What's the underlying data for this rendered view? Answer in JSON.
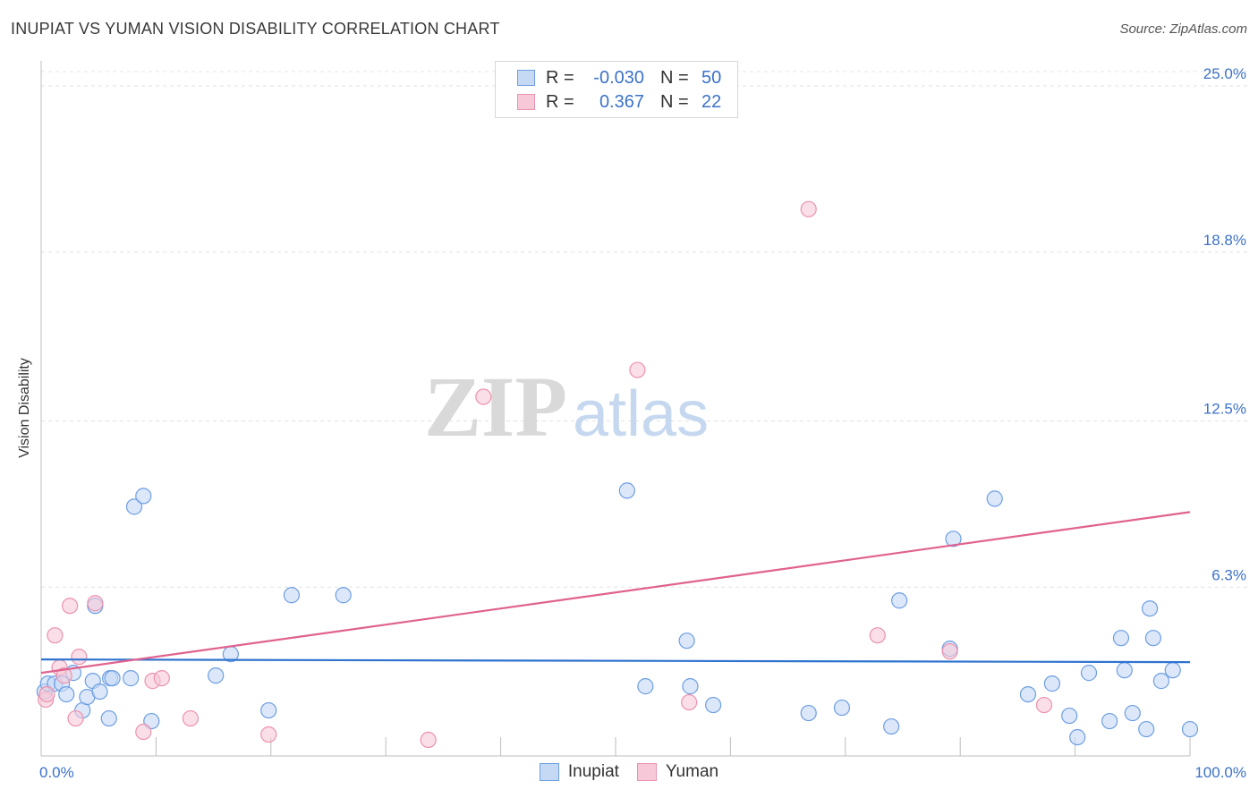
{
  "chart_data": {
    "type": "scatter",
    "title": "INUPIAT VS YUMAN VISION DISABILITY CORRELATION CHART",
    "source": "Source: ZipAtlas.com",
    "xlabel": "",
    "ylabel": "Vision Disability",
    "xlim": [
      0,
      100
    ],
    "ylim": [
      0,
      25
    ],
    "x_tick_labels": [
      "0.0%",
      "100.0%"
    ],
    "y_ticks": [
      6.3,
      12.5,
      18.8,
      25.0
    ],
    "y_tick_labels": [
      "6.3%",
      "12.5%",
      "18.8%",
      "25.0%"
    ],
    "grid": true,
    "watermark": {
      "part1": "ZIP",
      "part2": "atlas"
    },
    "legend_top": [
      {
        "r_label": "R =",
        "r_value": "-0.030",
        "n_label": "N =",
        "n_value": "50"
      },
      {
        "r_label": "R =",
        "r_value": "0.367",
        "n_label": "N =",
        "n_value": "22"
      }
    ],
    "series": [
      {
        "name": "Inupiat",
        "color": "#6d9ee3",
        "fill": "#c5d9f5",
        "line_color": "#2f73cf",
        "trend": [
          [
            0,
            3.6
          ],
          [
            100,
            3.5
          ]
        ],
        "points": [
          [
            0.3,
            2.4
          ],
          [
            0.6,
            2.7
          ],
          [
            1.2,
            2.7
          ],
          [
            1.8,
            2.7
          ],
          [
            2.2,
            2.3
          ],
          [
            2.8,
            3.1
          ],
          [
            3.6,
            1.7
          ],
          [
            4.0,
            2.2
          ],
          [
            4.5,
            2.8
          ],
          [
            5.1,
            2.4
          ],
          [
            4.7,
            5.6
          ],
          [
            5.9,
            1.4
          ],
          [
            6.0,
            2.9
          ],
          [
            6.2,
            2.9
          ],
          [
            7.8,
            2.9
          ],
          [
            8.1,
            9.3
          ],
          [
            8.9,
            9.7
          ],
          [
            9.6,
            1.3
          ],
          [
            15.2,
            3.0
          ],
          [
            16.5,
            3.8
          ],
          [
            19.8,
            1.7
          ],
          [
            21.8,
            6.0
          ],
          [
            26.3,
            6.0
          ],
          [
            51.0,
            9.9
          ],
          [
            52.6,
            2.6
          ],
          [
            56.2,
            4.3
          ],
          [
            56.5,
            2.6
          ],
          [
            58.5,
            1.9
          ],
          [
            66.8,
            1.6
          ],
          [
            69.7,
            1.8
          ],
          [
            74.7,
            5.8
          ],
          [
            74.0,
            1.1
          ],
          [
            79.1,
            4.0
          ],
          [
            79.4,
            8.1
          ],
          [
            83.0,
            9.6
          ],
          [
            85.9,
            2.3
          ],
          [
            88.0,
            2.7
          ],
          [
            89.5,
            1.5
          ],
          [
            90.2,
            0.7
          ],
          [
            91.2,
            3.1
          ],
          [
            93.0,
            1.3
          ],
          [
            94.0,
            4.4
          ],
          [
            94.3,
            3.2
          ],
          [
            95.0,
            1.6
          ],
          [
            96.2,
            1.0
          ],
          [
            96.5,
            5.5
          ],
          [
            96.8,
            4.4
          ],
          [
            97.5,
            2.8
          ],
          [
            98.5,
            3.2
          ],
          [
            100.0,
            1.0
          ]
        ]
      },
      {
        "name": "Yuman",
        "color": "#ec92ad",
        "fill": "#f7c9d8",
        "line_color": "#e0628f",
        "trend": [
          [
            0,
            3.1
          ],
          [
            100,
            9.1
          ]
        ],
        "points": [
          [
            0.4,
            2.1
          ],
          [
            0.5,
            2.3
          ],
          [
            1.2,
            4.5
          ],
          [
            1.6,
            3.3
          ],
          [
            2.0,
            3.0
          ],
          [
            2.5,
            5.6
          ],
          [
            3.0,
            1.4
          ],
          [
            3.3,
            3.7
          ],
          [
            4.7,
            5.7
          ],
          [
            8.9,
            0.9
          ],
          [
            9.7,
            2.8
          ],
          [
            10.5,
            2.9
          ],
          [
            13.0,
            1.4
          ],
          [
            19.8,
            0.8
          ],
          [
            33.7,
            0.6
          ],
          [
            38.5,
            13.4
          ],
          [
            51.9,
            14.4
          ],
          [
            56.4,
            2.0
          ],
          [
            66.8,
            20.4
          ],
          [
            72.8,
            4.5
          ],
          [
            79.1,
            3.9
          ],
          [
            87.3,
            1.9
          ]
        ]
      }
    ]
  }
}
